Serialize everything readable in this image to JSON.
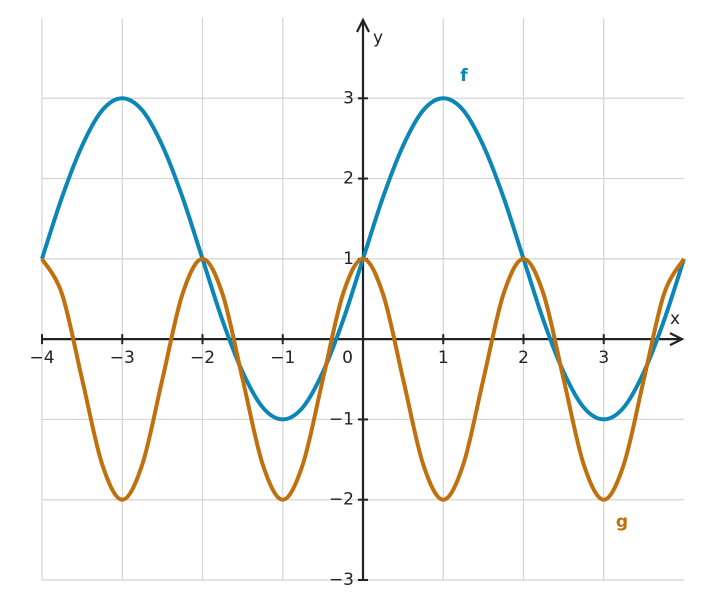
{
  "chart_data": {
    "type": "line",
    "x_label": "x",
    "y_label": "y",
    "x": [
      -4,
      -3.75,
      -3.5,
      -3.25,
      -3,
      -2.75,
      -2.5,
      -2.25,
      -2,
      -1.75,
      -1.5,
      -1.25,
      -1,
      -0.75,
      -0.5,
      -0.25,
      0,
      0.25,
      0.5,
      0.75,
      1,
      1.25,
      1.5,
      1.75,
      2,
      2.25,
      2.5,
      2.75,
      3,
      3.25,
      3.5,
      3.75,
      4
    ],
    "series": [
      {
        "name": "f",
        "color": "#0b86b6",
        "values": [
          1,
          1.77,
          2.41,
          2.85,
          3,
          2.85,
          2.41,
          1.77,
          1,
          0.23,
          -0.41,
          -0.85,
          -1,
          -0.85,
          -0.41,
          0.23,
          1,
          1.77,
          2.41,
          2.85,
          3,
          2.85,
          2.41,
          1.77,
          1,
          0.23,
          -0.41,
          -0.85,
          -1,
          -0.85,
          -0.41,
          0.23,
          1
        ]
      },
      {
        "name": "g",
        "color": "#c0700d",
        "values": [
          1,
          0.56,
          -0.5,
          -1.56,
          -2,
          -1.56,
          -0.5,
          0.56,
          1,
          0.56,
          -0.5,
          -1.56,
          -2,
          -1.56,
          -0.5,
          0.56,
          1,
          0.56,
          -0.5,
          -1.56,
          -2,
          -1.56,
          -0.5,
          0.56,
          1,
          0.56,
          -0.5,
          -1.56,
          -2,
          -1.56,
          -0.5,
          0.56,
          1
        ]
      }
    ],
    "xlim": [
      -4,
      4
    ],
    "ylim": [
      -3,
      4
    ],
    "xticks": [
      {
        "value": -4,
        "label": "−4"
      },
      {
        "value": -3,
        "label": "−3"
      },
      {
        "value": -2,
        "label": "−2"
      },
      {
        "value": -1,
        "label": "−1"
      },
      0,
      1,
      2,
      3
    ],
    "yticks": [
      {
        "value": -3,
        "label": "−3"
      },
      {
        "value": -2,
        "label": "−2"
      },
      {
        "value": -1,
        "label": "−1"
      },
      1,
      2,
      3
    ],
    "grid": true
  }
}
